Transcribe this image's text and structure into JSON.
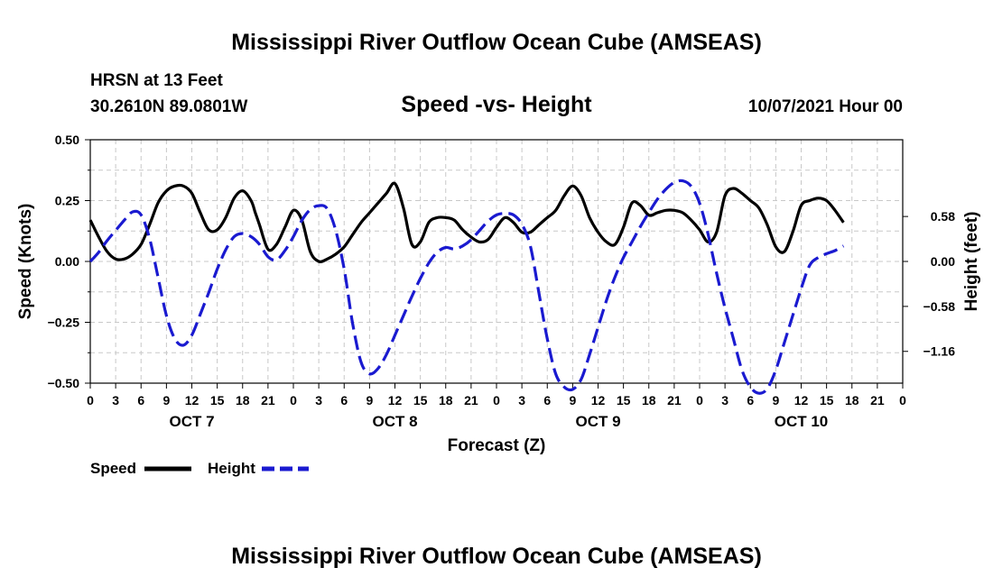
{
  "header": {
    "title": "Mississippi River Outflow Ocean Cube (AMSEAS)",
    "station_line": "HRSN at 13 Feet",
    "coords_line": "30.2610N  89.0801W",
    "plot_title": "Speed -vs- Height",
    "date_line": "10/07/2021 Hour 00"
  },
  "footer": {
    "title": "Mississippi River Outflow Ocean Cube (AMSEAS)"
  },
  "legend": {
    "speed_label": "Speed",
    "height_label": "Height"
  },
  "colors": {
    "speed": "#000000",
    "height": "#1a1ad0",
    "grid": "#c8c8c8"
  },
  "chart_data": {
    "type": "line",
    "title": "Speed -vs- Height",
    "xlabel": "Forecast (Z)",
    "ylabel": "Speed (Knots)",
    "y2label": "Height (feet)",
    "xlim": [
      0,
      96
    ],
    "ylim": [
      -0.5,
      0.5
    ],
    "y2lim": [
      -1.57,
      1.57
    ],
    "x_tick_labels": [
      "0",
      "3",
      "6",
      "9",
      "12",
      "15",
      "18",
      "21",
      "0",
      "3",
      "6",
      "9",
      "12",
      "15",
      "18",
      "21",
      "0",
      "3",
      "6",
      "9",
      "12",
      "15",
      "18",
      "21",
      "0",
      "3",
      "6",
      "9",
      "12",
      "15",
      "18",
      "21",
      "0"
    ],
    "y_tick_labels": [
      "0.50",
      "0.25",
      "0.00",
      "−0.25",
      "−0.50"
    ],
    "y_ticks": [
      0.5,
      0.25,
      0.0,
      -0.25,
      -0.5
    ],
    "y2_tick_labels": [
      "0.58",
      "0.00",
      "−0.58",
      "−1.16"
    ],
    "y2_ticks": [
      0.58,
      0.0,
      -0.58,
      -1.16
    ],
    "day_labels": [
      {
        "label": "OCT 7",
        "hour": 12
      },
      {
        "label": "OCT 8",
        "hour": 36
      },
      {
        "label": "OCT 9",
        "hour": 60
      },
      {
        "label": "OCT 10",
        "hour": 84
      }
    ],
    "grid": true,
    "series": [
      {
        "name": "Speed",
        "axis": "left",
        "style": "solid",
        "points": [
          [
            0,
            0.17
          ],
          [
            1,
            0.1
          ],
          [
            2,
            0.04
          ],
          [
            3,
            0.01
          ],
          [
            4,
            0.01
          ],
          [
            5,
            0.03
          ],
          [
            6,
            0.07
          ],
          [
            7,
            0.15
          ],
          [
            8,
            0.24
          ],
          [
            9,
            0.29
          ],
          [
            10,
            0.31
          ],
          [
            11,
            0.31
          ],
          [
            12,
            0.28
          ],
          [
            13,
            0.2
          ],
          [
            14,
            0.13
          ],
          [
            15,
            0.13
          ],
          [
            16,
            0.18
          ],
          [
            17,
            0.26
          ],
          [
            18,
            0.29
          ],
          [
            19,
            0.25
          ],
          [
            19.5,
            0.2
          ],
          [
            20,
            0.15
          ],
          [
            21,
            0.05
          ],
          [
            22,
            0.07
          ],
          [
            23,
            0.14
          ],
          [
            24,
            0.21
          ],
          [
            25,
            0.17
          ],
          [
            26,
            0.04
          ],
          [
            27,
            0.0
          ],
          [
            28,
            0.01
          ],
          [
            29,
            0.03
          ],
          [
            30,
            0.06
          ],
          [
            31,
            0.11
          ],
          [
            32,
            0.16
          ],
          [
            33,
            0.2
          ],
          [
            34,
            0.24
          ],
          [
            35,
            0.28
          ],
          [
            36,
            0.32
          ],
          [
            37,
            0.22
          ],
          [
            38,
            0.07
          ],
          [
            39,
            0.08
          ],
          [
            40,
            0.16
          ],
          [
            41,
            0.18
          ],
          [
            42,
            0.18
          ],
          [
            43,
            0.17
          ],
          [
            44,
            0.13
          ],
          [
            45,
            0.1
          ],
          [
            46,
            0.08
          ],
          [
            47,
            0.09
          ],
          [
            48,
            0.14
          ],
          [
            49,
            0.18
          ],
          [
            50,
            0.16
          ],
          [
            51,
            0.12
          ],
          [
            52,
            0.12
          ],
          [
            53,
            0.15
          ],
          [
            54,
            0.18
          ],
          [
            55,
            0.21
          ],
          [
            56,
            0.27
          ],
          [
            57,
            0.31
          ],
          [
            58,
            0.27
          ],
          [
            59,
            0.18
          ],
          [
            60,
            0.12
          ],
          [
            61,
            0.08
          ],
          [
            62,
            0.07
          ],
          [
            63,
            0.14
          ],
          [
            64,
            0.24
          ],
          [
            65,
            0.23
          ],
          [
            66,
            0.19
          ],
          [
            67,
            0.2
          ],
          [
            68,
            0.21
          ],
          [
            69,
            0.21
          ],
          [
            70,
            0.2
          ],
          [
            71,
            0.17
          ],
          [
            72,
            0.13
          ],
          [
            73,
            0.08
          ],
          [
            74,
            0.12
          ],
          [
            75,
            0.27
          ],
          [
            76,
            0.3
          ],
          [
            77,
            0.28
          ],
          [
            78,
            0.25
          ],
          [
            79,
            0.22
          ],
          [
            80,
            0.15
          ],
          [
            81,
            0.06
          ],
          [
            82,
            0.04
          ],
          [
            83,
            0.12
          ],
          [
            84,
            0.23
          ],
          [
            85,
            0.25
          ],
          [
            86,
            0.26
          ],
          [
            87,
            0.25
          ],
          [
            88,
            0.21
          ],
          [
            89,
            0.16
          ]
        ]
      },
      {
        "name": "Height",
        "axis": "right",
        "style": "dashed",
        "points": [
          [
            0,
            0.0
          ],
          [
            1,
            0.12
          ],
          [
            2,
            0.27
          ],
          [
            3,
            0.4
          ],
          [
            4,
            0.53
          ],
          [
            5,
            0.64
          ],
          [
            6,
            0.6
          ],
          [
            7,
            0.3
          ],
          [
            8,
            -0.2
          ],
          [
            9,
            -0.7
          ],
          [
            10,
            -1.0
          ],
          [
            11,
            -1.08
          ],
          [
            12,
            -0.95
          ],
          [
            13,
            -0.68
          ],
          [
            14,
            -0.4
          ],
          [
            15,
            -0.1
          ],
          [
            16,
            0.15
          ],
          [
            17,
            0.32
          ],
          [
            18,
            0.36
          ],
          [
            19,
            0.32
          ],
          [
            20,
            0.22
          ],
          [
            21,
            0.06
          ],
          [
            22,
            0.02
          ],
          [
            23,
            0.14
          ],
          [
            24,
            0.32
          ],
          [
            25,
            0.53
          ],
          [
            26,
            0.67
          ],
          [
            27,
            0.72
          ],
          [
            28,
            0.68
          ],
          [
            29,
            0.4
          ],
          [
            30,
            -0.1
          ],
          [
            31,
            -0.8
          ],
          [
            32,
            -1.3
          ],
          [
            33,
            -1.45
          ],
          [
            34,
            -1.38
          ],
          [
            35,
            -1.2
          ],
          [
            36,
            -0.95
          ],
          [
            37,
            -0.7
          ],
          [
            38,
            -0.45
          ],
          [
            39,
            -0.22
          ],
          [
            40,
            -0.02
          ],
          [
            41,
            0.12
          ],
          [
            42,
            0.18
          ],
          [
            43,
            0.16
          ],
          [
            44,
            0.2
          ],
          [
            45,
            0.28
          ],
          [
            46,
            0.4
          ],
          [
            47,
            0.52
          ],
          [
            48,
            0.6
          ],
          [
            49,
            0.62
          ],
          [
            50,
            0.6
          ],
          [
            51,
            0.48
          ],
          [
            52,
            0.2
          ],
          [
            53,
            -0.4
          ],
          [
            54,
            -1.0
          ],
          [
            55,
            -1.45
          ],
          [
            56,
            -1.62
          ],
          [
            57,
            -1.65
          ],
          [
            58,
            -1.52
          ],
          [
            59,
            -1.2
          ],
          [
            60,
            -0.85
          ],
          [
            61,
            -0.5
          ],
          [
            62,
            -0.2
          ],
          [
            63,
            0.05
          ],
          [
            64,
            0.25
          ],
          [
            65,
            0.45
          ],
          [
            66,
            0.63
          ],
          [
            67,
            0.8
          ],
          [
            68,
            0.93
          ],
          [
            69,
            1.02
          ],
          [
            70,
            1.04
          ],
          [
            71,
            0.97
          ],
          [
            72,
            0.75
          ],
          [
            73,
            0.35
          ],
          [
            74,
            -0.15
          ],
          [
            75,
            -0.6
          ],
          [
            76,
            -1.0
          ],
          [
            77,
            -1.4
          ],
          [
            78,
            -1.62
          ],
          [
            79,
            -1.7
          ],
          [
            80,
            -1.64
          ],
          [
            81,
            -1.4
          ],
          [
            82,
            -1.05
          ],
          [
            83,
            -0.7
          ],
          [
            84,
            -0.35
          ],
          [
            85,
            -0.05
          ],
          [
            86,
            0.05
          ],
          [
            87,
            0.1
          ],
          [
            88,
            0.14
          ],
          [
            89,
            0.2
          ]
        ]
      }
    ]
  }
}
